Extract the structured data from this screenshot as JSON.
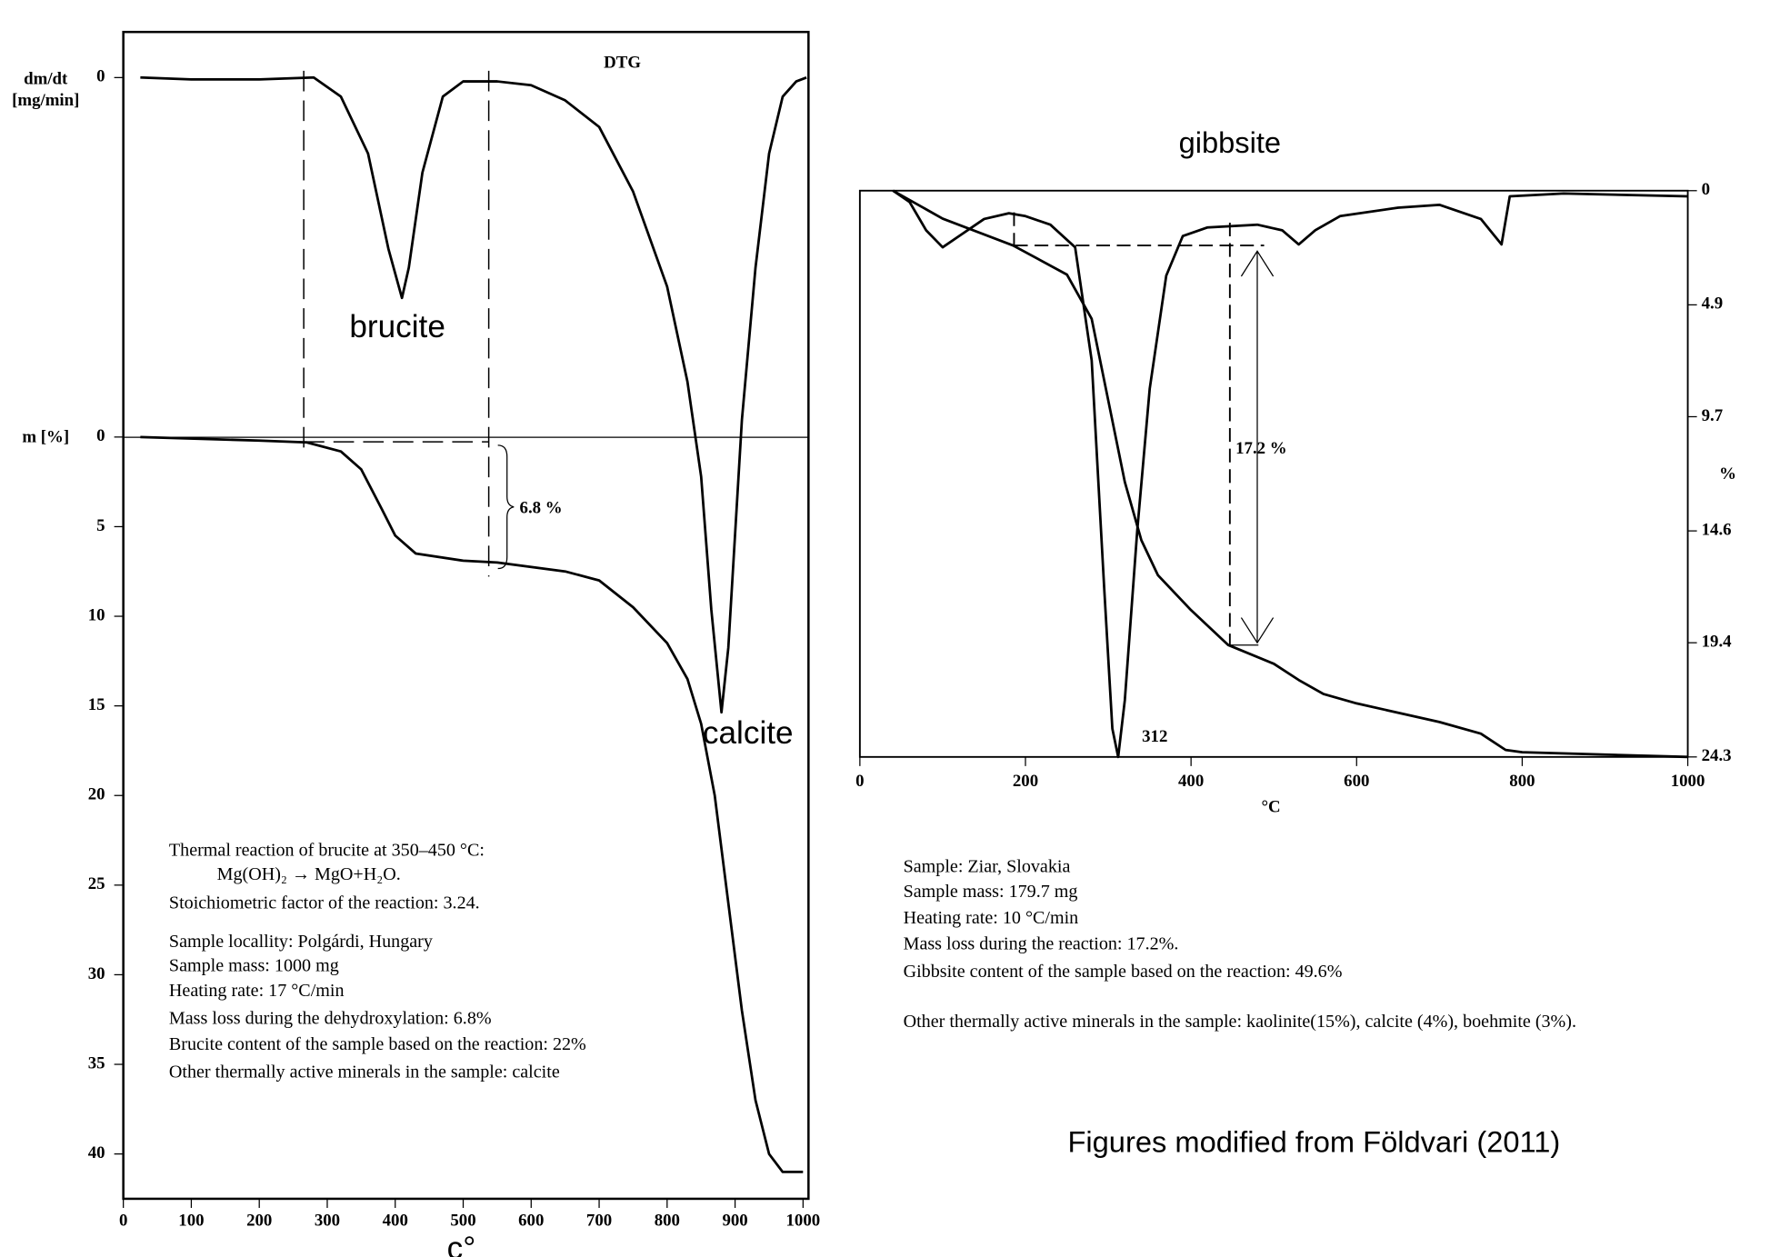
{
  "chart_data": [
    {
      "type": "line",
      "x_label": "c°",
      "y_label": "m [%]",
      "y2_label": [
        "dm/dt",
        "[mg/min]"
      ],
      "xlim": [
        0,
        1008
      ],
      "xticks": [
        0,
        100,
        200,
        300,
        400,
        500,
        600,
        700,
        800,
        900,
        1000
      ],
      "ylim": [
        42.5,
        -22.6
      ],
      "yticks": [
        0,
        5,
        10,
        15,
        20,
        25,
        30,
        35,
        40
      ],
      "y2lim": [
        -2.95,
        0.12
      ],
      "y2ticks": [
        0
      ],
      "series": [
        {
          "name": "DTG",
          "color": "#000",
          "axis": "y2",
          "x": [
            25,
            100,
            200,
            280,
            320,
            360,
            390,
            410,
            420,
            440,
            470,
            500,
            550,
            600,
            650,
            700,
            750,
            800,
            830,
            850,
            865,
            880,
            890,
            910,
            930,
            950,
            970,
            990,
            1005
          ],
          "values": [
            0,
            -0.005,
            -0.005,
            0,
            -0.05,
            -0.2,
            -0.45,
            -0.58,
            -0.5,
            -0.25,
            -0.05,
            -0.01,
            -0.01,
            -0.02,
            -0.06,
            -0.13,
            -0.3,
            -0.55,
            -0.8,
            -1.05,
            -1.4,
            -1.67,
            -1.5,
            -0.9,
            -0.5,
            -0.2,
            -0.05,
            -0.01,
            0
          ]
        },
        {
          "color": "#000",
          "x": [
            25,
            200,
            270,
            320,
            350,
            380,
            400,
            430,
            500,
            550,
            650,
            700,
            750,
            800,
            830,
            850,
            870,
            890,
            910,
            930,
            950,
            970,
            1000
          ],
          "values": [
            0,
            0.2,
            0.3,
            0.8,
            1.8,
            4,
            5.5,
            6.5,
            6.9,
            7,
            7.5,
            8,
            9.5,
            11.5,
            13.5,
            16,
            20,
            26,
            32,
            37,
            40,
            41,
            41
          ]
        }
      ],
      "annotations": [
        "brucite",
        "calcite",
        "6.8 %"
      ],
      "notes": [
        "Thermal reaction of brucite at 350–450 °C:",
        "Mg(OH)₂ → MgO+H₂O.",
        "Stoichiometric factor of the reaction: 3.24.",
        "Sample locallity: Polgárdi, Hungary",
        "Sample mass: 1000 mg",
        "Heating rate: 17 °C/min",
        "Mass loss during the dehydroxylation: 6.8%",
        "Brucite content of the sample based on the reaction: 22%",
        "Other thermally active minerals in the sample: calcite"
      ]
    },
    {
      "type": "line",
      "title": "gibbsite",
      "x_label": "°C",
      "y_label": "%",
      "xlim": [
        0,
        1000
      ],
      "xticks": [
        0,
        200,
        400,
        600,
        800,
        1000
      ],
      "ylim": [
        24.3,
        0
      ],
      "yticks": [
        0,
        4.9,
        9.7,
        14.6,
        19.4,
        24.3
      ],
      "y2lim": [
        -1,
        0
      ],
      "series": [
        {
          "color": "#000",
          "x": [
            40,
            100,
            185,
            250,
            280,
            300,
            320,
            340,
            360,
            400,
            445,
            500,
            530,
            560,
            600,
            700,
            750,
            780,
            800,
            1000
          ],
          "values": [
            0,
            1.2,
            2.35,
            3.6,
            5.5,
            9,
            12.5,
            15,
            16.5,
            18,
            19.5,
            20.3,
            21,
            21.6,
            22,
            22.8,
            23.3,
            24,
            24.1,
            24.3
          ]
        },
        {
          "color": "#000",
          "axis": "y2",
          "x": [
            40,
            60,
            80,
            100,
            120,
            150,
            180,
            200,
            230,
            260,
            280,
            295,
            305,
            312,
            320,
            335,
            350,
            370,
            390,
            420,
            480,
            510,
            530,
            550,
            580,
            650,
            700,
            750,
            775,
            785,
            850,
            1000
          ],
          "values": [
            0,
            -0.02,
            -0.07,
            -0.1,
            -0.08,
            -0.05,
            -0.04,
            -0.045,
            -0.06,
            -0.1,
            -0.3,
            -0.7,
            -0.95,
            -1,
            -0.9,
            -0.6,
            -0.35,
            -0.15,
            -0.08,
            -0.065,
            -0.06,
            -0.07,
            -0.095,
            -0.07,
            -0.045,
            -0.03,
            -0.025,
            -0.05,
            -0.095,
            -0.01,
            -0.005,
            -0.01
          ]
        }
      ],
      "annotations": [
        "312",
        "17.2 %"
      ],
      "notes": [
        "Sample: Ziar, Slovakia",
        "Sample mass: 179.7 mg",
        "Heating rate: 10 °C/min",
        "Mass loss during the reaction: 17.2%.",
        "Gibbsite content of the sample based on the reaction:  49.6%",
        "Other thermally active minerals in the sample: kaolinite(15%), calcite (4%), boehmite (3%)."
      ]
    }
  ],
  "caption": "Figures modified from Földvari (2011)"
}
